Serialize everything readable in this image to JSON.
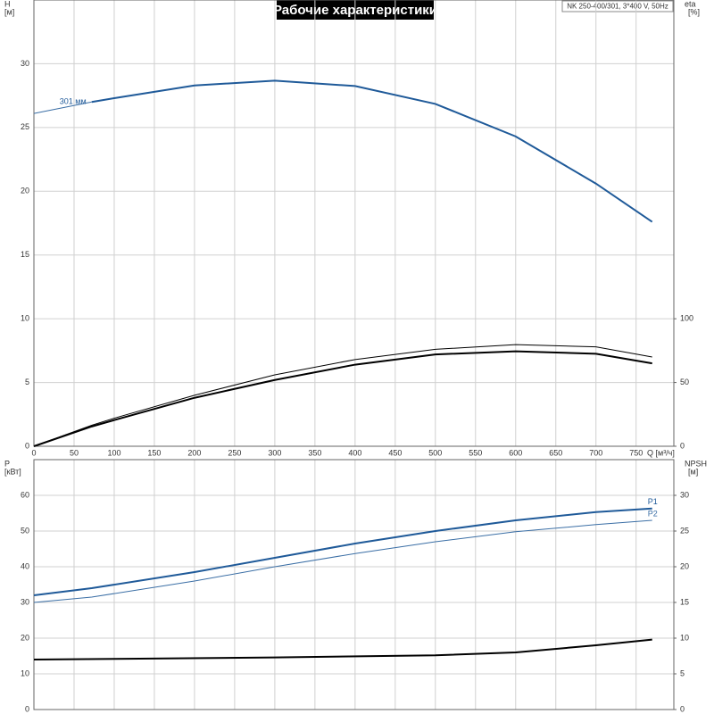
{
  "chart_data": [
    {
      "type": "line",
      "title": "Рабочие характеристики",
      "subtitle": "NK 250-400/301, 3*400 V, 50Hz",
      "x_label": "Q [м³/ч]",
      "y_label": "H",
      "y_unit": "[м]",
      "y2_label": "eta",
      "y2_unit": "[%]",
      "xlim": [
        0,
        797
      ],
      "xticks": [
        0,
        50,
        100,
        150,
        200,
        250,
        300,
        350,
        400,
        450,
        500,
        550,
        600,
        650,
        700,
        750
      ],
      "ylim": [
        0,
        35
      ],
      "yticks": [
        0,
        5,
        10,
        15,
        20,
        25,
        30
      ],
      "y2lim": [
        0,
        350
      ],
      "y2ticks": [
        0,
        50,
        100
      ],
      "grid": true,
      "series": [
        {
          "x": [
            0,
            72
          ],
          "values": [
            26.1,
            27.0
          ],
          "color": "#3a6ea5",
          "width": 1
        },
        {
          "name": "301 мм",
          "x": [
            72,
            100,
            200,
            300,
            400,
            500,
            600,
            700,
            770
          ],
          "values": [
            27.0,
            27.3,
            28.3,
            28.67,
            28.25,
            26.85,
            24.3,
            20.6,
            17.6
          ],
          "color": "#1f5a99",
          "width": 2
        },
        {
          "x": [
            0,
            72,
            100,
            200,
            300,
            400,
            500,
            600,
            700,
            770
          ],
          "values": [
            0,
            16.5,
            22,
            40,
            56,
            68,
            76,
            79.7,
            78,
            70
          ],
          "color": "#000000",
          "width": 1,
          "axis": "y2"
        },
        {
          "x": [
            0,
            72,
            100,
            200,
            300,
            400,
            500,
            600,
            700,
            770
          ],
          "values": [
            0,
            15.5,
            20.5,
            38,
            52,
            64,
            72,
            74.5,
            72.5,
            65
          ],
          "color": "#000000",
          "width": 2,
          "axis": "y2"
        }
      ]
    },
    {
      "type": "line",
      "y_label": "P",
      "y_unit": "[кВт]",
      "y2_label": "NPSH",
      "y2_unit": "[м]",
      "xlim": [
        0,
        797
      ],
      "xticks": [
        0,
        50,
        100,
        150,
        200,
        250,
        300,
        350,
        400,
        450,
        500,
        550,
        600,
        650,
        700,
        750
      ],
      "ylim": [
        0,
        70
      ],
      "yticks": [
        0,
        10,
        20,
        30,
        40,
        50,
        60
      ],
      "y2lim": [
        0,
        35
      ],
      "y2ticks": [
        0,
        5,
        10,
        15,
        20,
        25,
        30
      ],
      "grid": true,
      "series": [
        {
          "name": "P1",
          "x": [
            0,
            72,
            200,
            300,
            400,
            500,
            600,
            700,
            770
          ],
          "values": [
            32,
            34,
            38.5,
            42.5,
            46.5,
            50,
            53,
            55.3,
            56.3
          ],
          "color": "#1f5a99",
          "width": 2
        },
        {
          "name": "P2",
          "x": [
            0,
            72,
            200,
            300,
            400,
            500,
            600,
            700,
            770
          ],
          "values": [
            30,
            31.5,
            36,
            40,
            43.7,
            47,
            49.8,
            51.8,
            53
          ],
          "color": "#3a6ea5",
          "width": 1
        },
        {
          "x": [
            0,
            100,
            300,
            500,
            600,
            700,
            770
          ],
          "values": [
            7.0,
            7.1,
            7.3,
            7.6,
            8.0,
            9.0,
            9.8
          ],
          "color": "#000000",
          "width": 2,
          "axis": "y2"
        }
      ]
    }
  ]
}
